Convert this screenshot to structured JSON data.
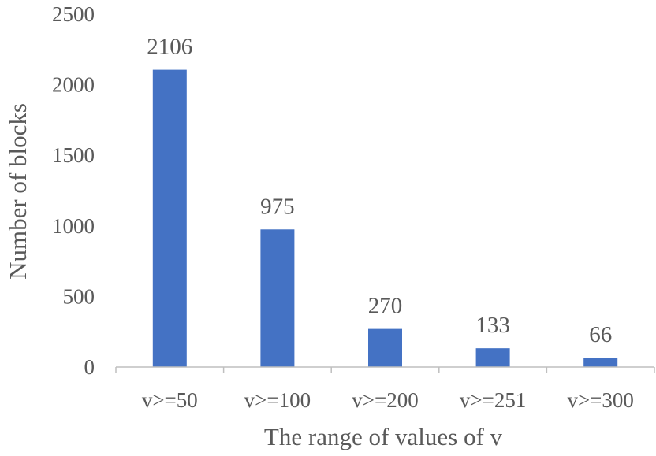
{
  "chart_data": {
    "type": "bar",
    "title": "",
    "xlabel": "The range of values of v",
    "ylabel": "Number of blocks",
    "categories": [
      "v>=50",
      "v>=100",
      "v>=200",
      "v>=251",
      "v>=300"
    ],
    "values": [
      2106,
      975,
      270,
      133,
      66
    ],
    "data_labels": [
      "2106",
      "975",
      "270",
      "133",
      "66"
    ],
    "yticks": [
      0,
      500,
      1000,
      1500,
      2000,
      2500
    ],
    "ytick_labels": [
      "0",
      "500",
      "1000",
      "1500",
      "2000",
      "2500"
    ],
    "ylim": [
      0,
      2500
    ],
    "grid": false,
    "legend": "none",
    "bar_color": "#4472c4",
    "axis_color": "#bfbfbf",
    "text_color": "#595959"
  }
}
